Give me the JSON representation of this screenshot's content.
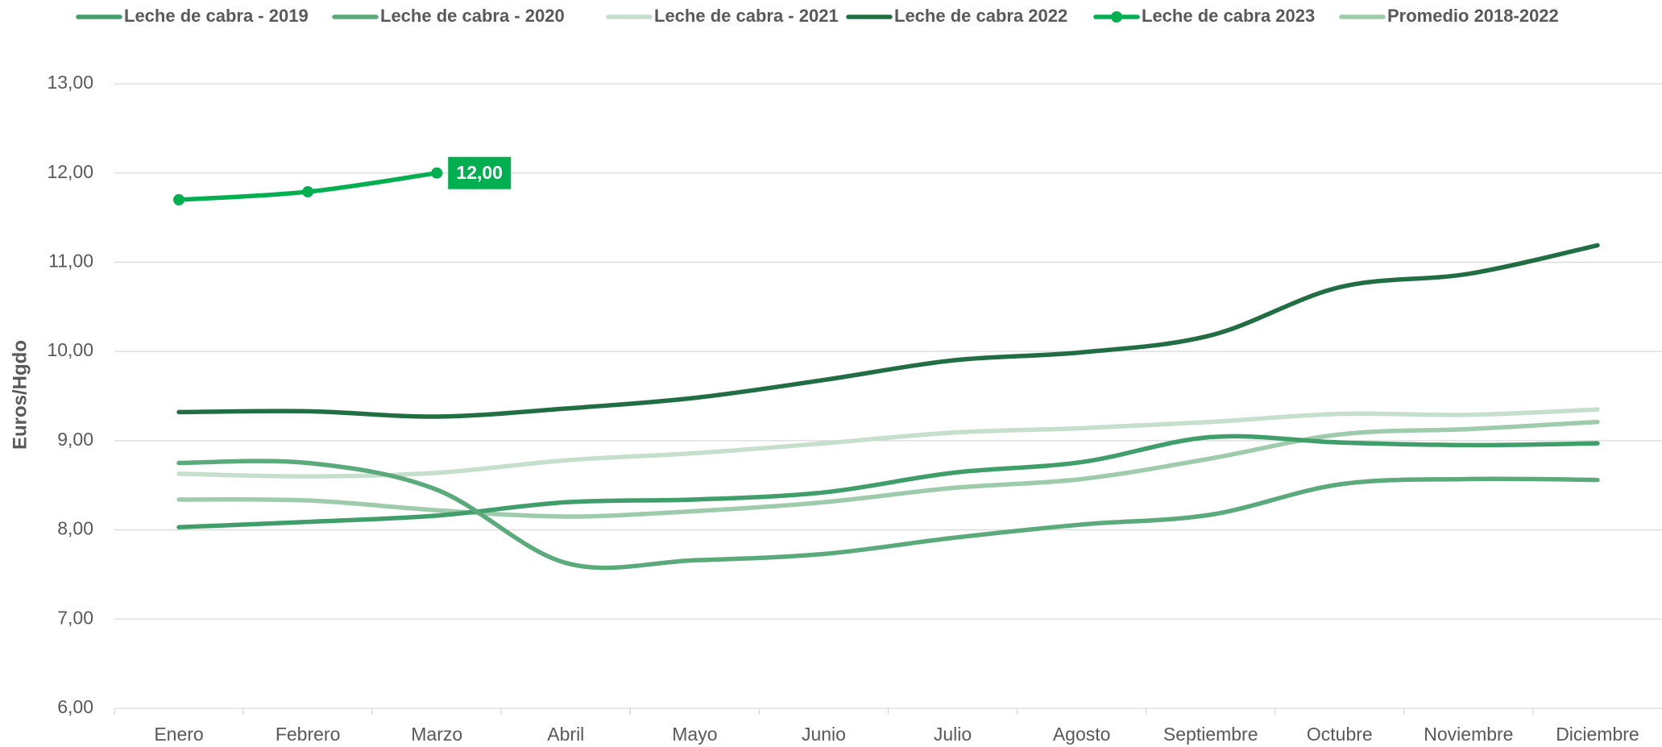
{
  "chart_data": {
    "type": "line",
    "y_label": "Euros/Hgdo",
    "categories": [
      "Enero",
      "Febrero",
      "Marzo",
      "Abril",
      "Mayo",
      "Junio",
      "Julio",
      "Agosto",
      "Septiembre",
      "Octubre",
      "Noviembre",
      "Diciembre"
    ],
    "series": [
      {
        "name": "Leche de cabra - 2019",
        "color": "#3f9e6a",
        "values": [
          8.03,
          8.09,
          8.16,
          8.31,
          8.34,
          8.42,
          8.64,
          8.76,
          9.04,
          8.98,
          8.95,
          8.97
        ]
      },
      {
        "name": "Leche de cabra - 2020",
        "color": "#5aaa7b",
        "values": [
          8.75,
          8.75,
          8.45,
          7.63,
          7.66,
          7.73,
          7.91,
          8.06,
          8.17,
          8.51,
          8.57,
          8.56
        ]
      },
      {
        "name": "Leche de cabra - 2021",
        "color": "#c5dfcc",
        "values": [
          8.63,
          8.6,
          8.64,
          8.78,
          8.86,
          8.97,
          9.09,
          9.14,
          9.21,
          9.3,
          9.29,
          9.35
        ]
      },
      {
        "name": "Leche de cabra 2022",
        "color": "#216e45",
        "values": [
          9.32,
          9.33,
          9.27,
          9.36,
          9.48,
          9.68,
          9.9,
          9.99,
          10.18,
          10.72,
          10.87,
          11.19
        ]
      },
      {
        "name": "Leche de cabra 2023",
        "color": "#00b050",
        "markers": true,
        "values": [
          11.7,
          11.79,
          12.0,
          null,
          null,
          null,
          null,
          null,
          null,
          null,
          null,
          null
        ],
        "value_labels": [
          null,
          null,
          "12,00",
          null,
          null,
          null,
          null,
          null,
          null,
          null,
          null,
          null
        ]
      },
      {
        "name": "Promedio 2018-2022",
        "color": "#9dcbab",
        "values": [
          8.34,
          8.33,
          8.22,
          8.15,
          8.21,
          8.31,
          8.47,
          8.57,
          8.8,
          9.07,
          9.13,
          9.21
        ]
      }
    ],
    "ylim": [
      6,
      13
    ],
    "yticks": [
      {
        "value": 6,
        "label": "6,00"
      },
      {
        "value": 7,
        "label": "7,00"
      },
      {
        "value": 8,
        "label": "8,00"
      },
      {
        "value": 9,
        "label": "9,00"
      },
      {
        "value": 10,
        "label": "10,00"
      },
      {
        "value": 11,
        "label": "11,00"
      },
      {
        "value": 12,
        "label": "12,00"
      },
      {
        "value": 13,
        "label": "13,00"
      }
    ],
    "grid": true,
    "smooth": true,
    "legend": "top"
  }
}
